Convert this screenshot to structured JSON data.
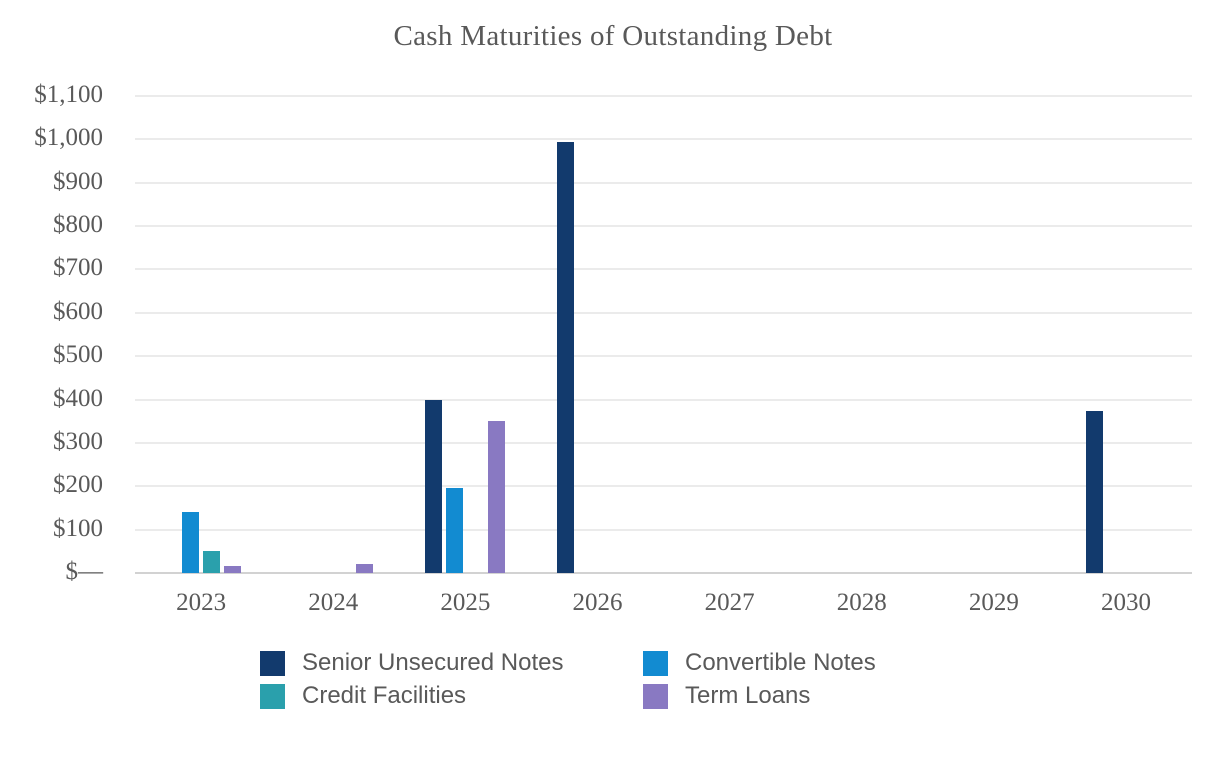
{
  "title": "Cash Maturities of Outstanding Debt",
  "colors": {
    "senior_unsecured_notes": "#123a6d",
    "convertible_notes": "#128bd1",
    "credit_facilities": "#2aa0ac",
    "term_loans": "#8979c2",
    "text_gray": "#595959",
    "gridline": "#ebebeb",
    "axis_line": "#d2d2d2"
  },
  "chart_data": {
    "type": "bar",
    "title": "Cash Maturities of Outstanding Debt",
    "xlabel": "",
    "ylabel": "",
    "categories": [
      "2023",
      "2024",
      "2025",
      "2026",
      "2027",
      "2028",
      "2029",
      "2030"
    ],
    "series": [
      {
        "name": "Senior Unsecured Notes",
        "color": "#123a6d",
        "values": [
          0,
          0,
          398,
          995,
          0,
          0,
          0,
          373
        ]
      },
      {
        "name": "Convertible Notes",
        "color": "#128bd1",
        "values": [
          140,
          0,
          197,
          0,
          0,
          0,
          0,
          0
        ]
      },
      {
        "name": "Credit Facilities",
        "color": "#2aa0ac",
        "values": [
          50,
          0,
          0,
          0,
          0,
          0,
          0,
          0
        ]
      },
      {
        "name": "Term Loans",
        "color": "#8979c2",
        "values": [
          15,
          20,
          350,
          0,
          0,
          0,
          0,
          0
        ]
      }
    ],
    "ylim": [
      0,
      1100
    ],
    "y_tick_step": 100,
    "y_tick_labels": [
      "$—",
      "$100",
      "$200",
      "$300",
      "$400",
      "$500",
      "$600",
      "$700",
      "$800",
      "$900",
      "$1,000",
      "$1,100"
    ],
    "grid": true,
    "legend_position": "bottom"
  }
}
